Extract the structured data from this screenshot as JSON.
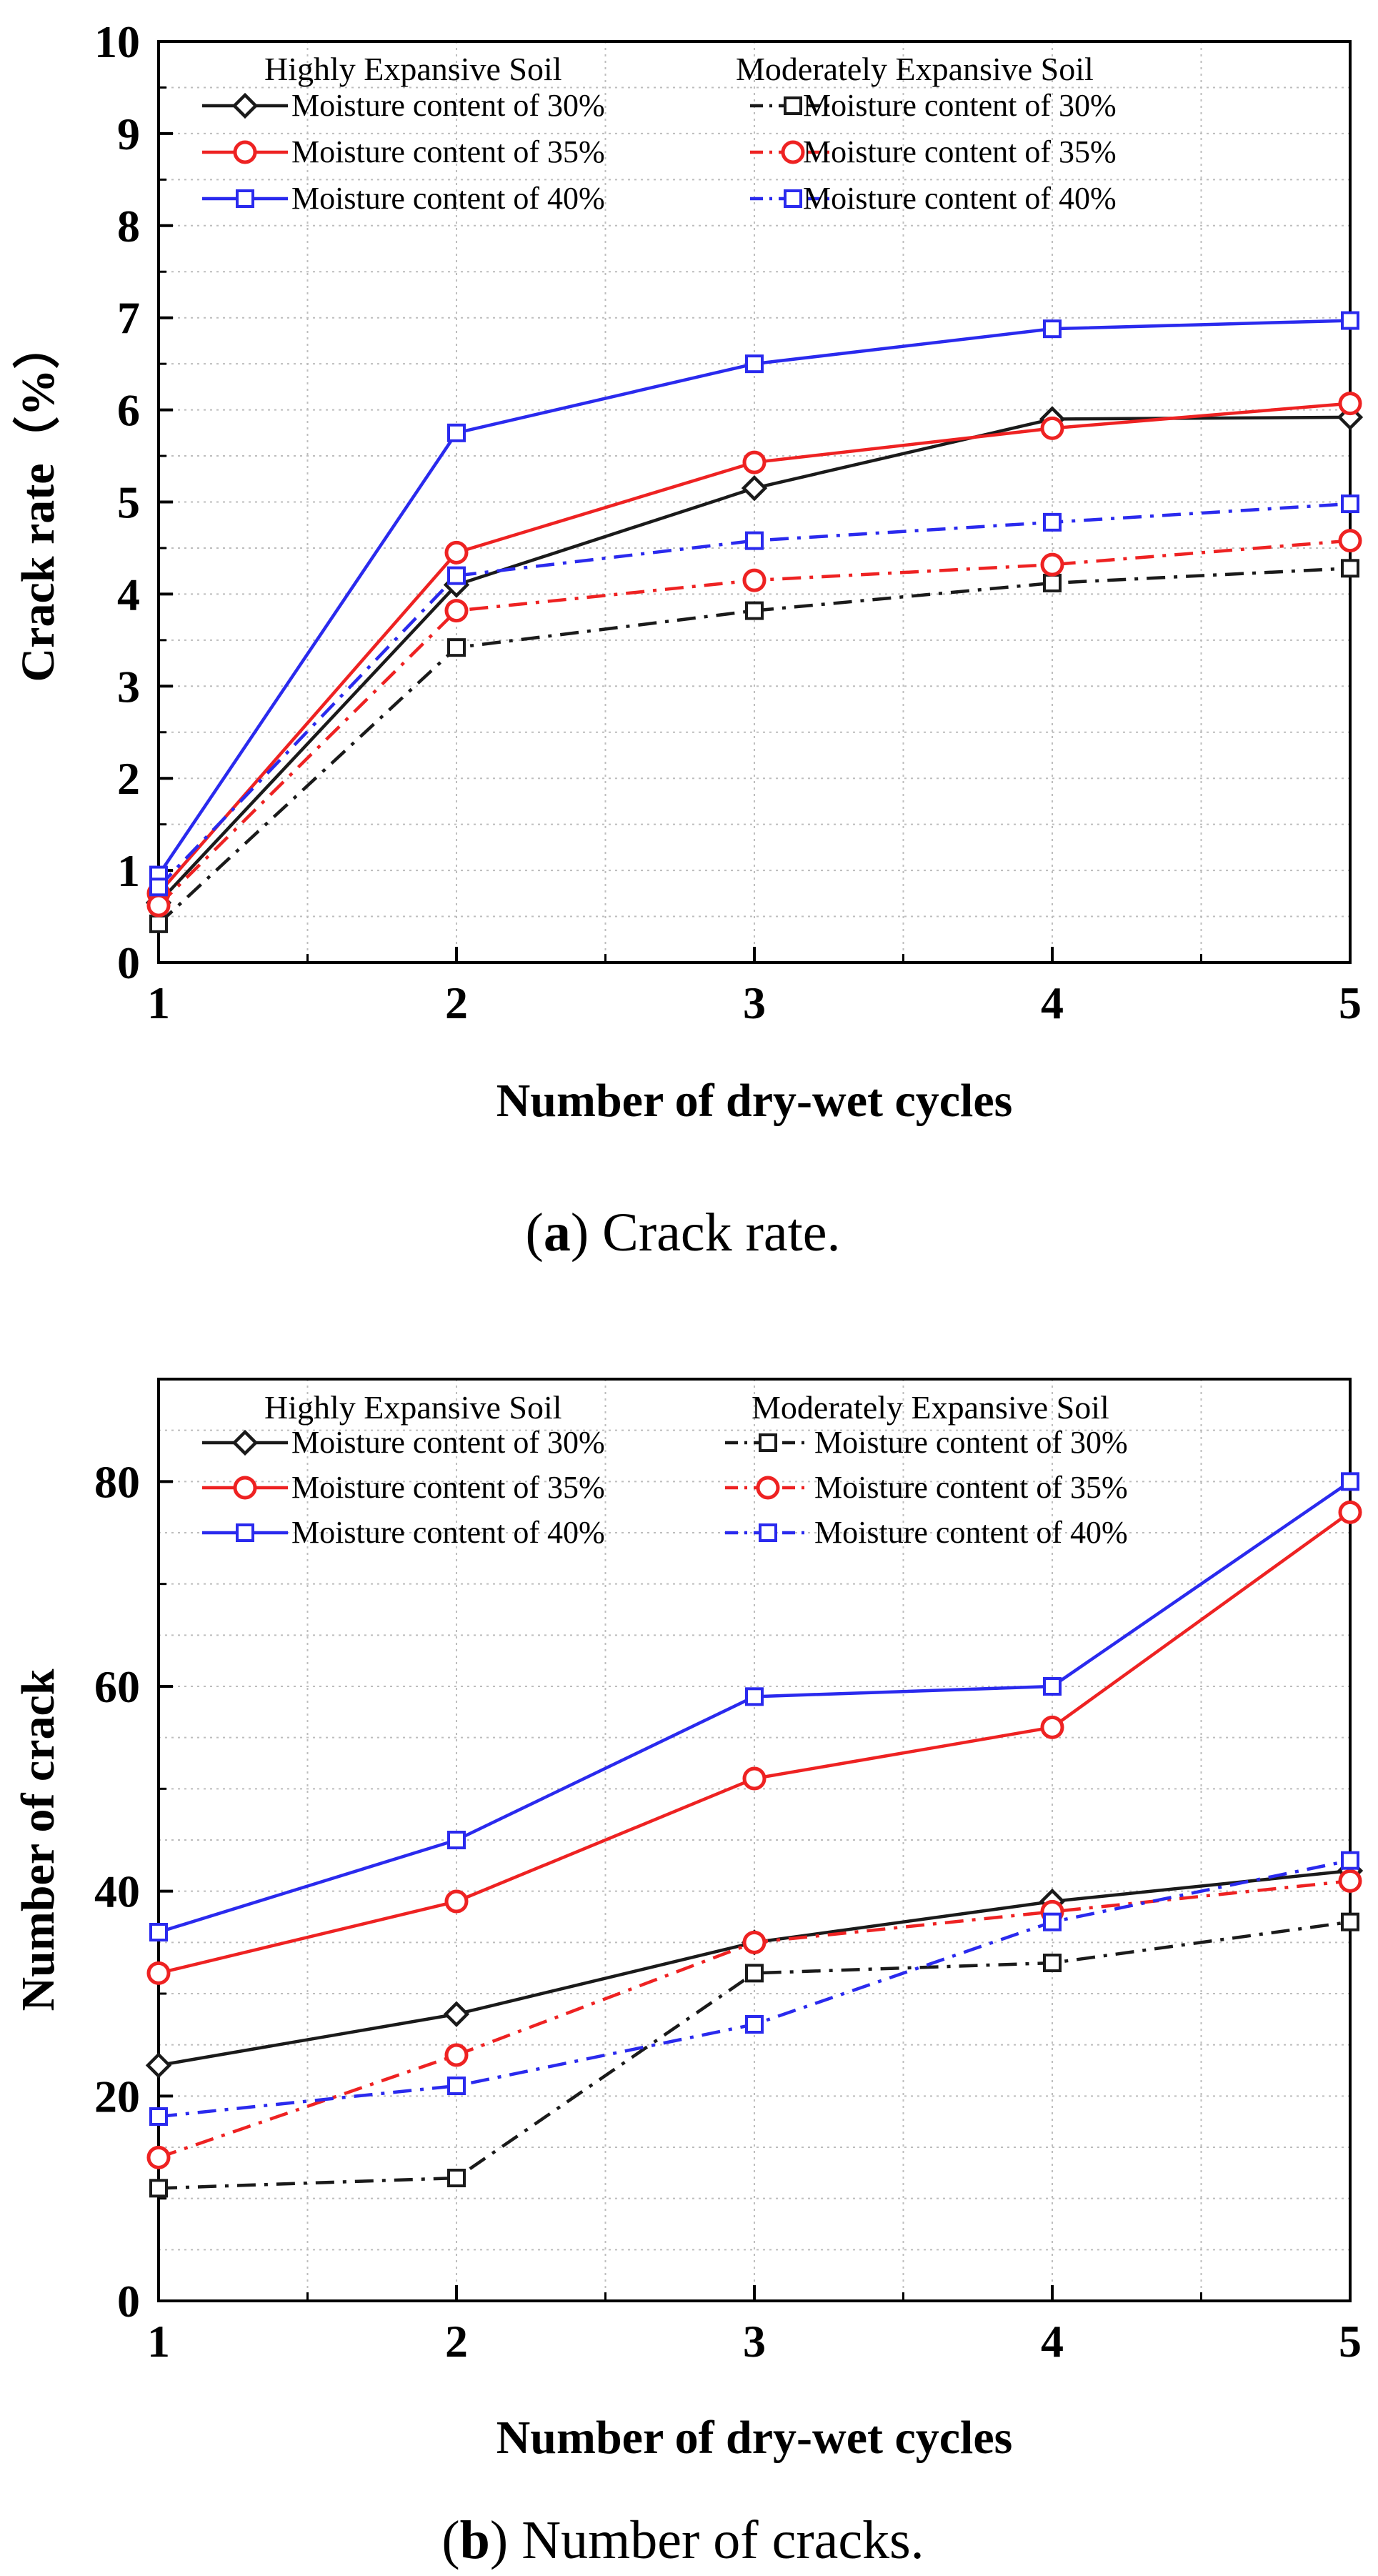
{
  "chart_data": [
    {
      "type": "line",
      "caption_open": "(",
      "caption_letter": "a",
      "caption_rest": ") Crack rate.",
      "xlabel": "Number of dry-wet cycles",
      "ylabel": "Crack rate（%）",
      "xlim": [
        1,
        5
      ],
      "ylim": [
        0,
        10
      ],
      "x_ticks": [
        "1",
        "2",
        "3",
        "4",
        "5"
      ],
      "y_ticks": [
        "0",
        "1",
        "2",
        "3",
        "4",
        "5",
        "6",
        "7",
        "8",
        "9",
        "10"
      ],
      "grid": true,
      "legend_groups": [
        "Highly Expansive Soil",
        "Moderately Expansive Soil"
      ],
      "x": [
        1,
        2,
        3,
        4,
        5
      ],
      "series": [
        {
          "name": "Moisture content of 30%",
          "group": "Highly Expansive Soil",
          "color": "#1a1a1a",
          "dash": "solid",
          "marker": "diamond",
          "values": [
            0.65,
            4.1,
            5.15,
            5.9,
            5.92
          ]
        },
        {
          "name": "Moisture content of 35%",
          "group": "Highly Expansive Soil",
          "color": "#ee2222",
          "dash": "solid",
          "marker": "circle",
          "values": [
            0.75,
            4.45,
            5.43,
            5.8,
            6.07
          ]
        },
        {
          "name": "Moisture content of 40%",
          "group": "Highly Expansive Soil",
          "color": "#2a2aee",
          "dash": "solid",
          "marker": "square",
          "values": [
            0.95,
            5.75,
            6.5,
            6.88,
            6.97
          ]
        },
        {
          "name": "Moisture content of 30%",
          "group": "Moderately Expansive Soil",
          "color": "#1a1a1a",
          "dash": "dashdot",
          "marker": "square",
          "values": [
            0.42,
            3.42,
            3.82,
            4.12,
            4.28
          ]
        },
        {
          "name": "Moisture content of 35%",
          "group": "Moderately Expansive Soil",
          "color": "#ee2222",
          "dash": "dashdot",
          "marker": "circle",
          "values": [
            0.62,
            3.82,
            4.15,
            4.32,
            4.58
          ]
        },
        {
          "name": "Moisture content of 40%",
          "group": "Moderately Expansive Soil",
          "color": "#2a2aee",
          "dash": "dashdot",
          "marker": "square",
          "values": [
            0.82,
            4.2,
            4.58,
            4.78,
            4.98
          ]
        }
      ]
    },
    {
      "type": "line",
      "caption_open": "(",
      "caption_letter": "b",
      "caption_rest": ") Number of cracks.",
      "xlabel": "Number of dry-wet cycles",
      "ylabel": "Number of crack",
      "xlim": [
        1,
        5
      ],
      "ylim": [
        0,
        90
      ],
      "x_ticks": [
        "1",
        "2",
        "3",
        "4",
        "5"
      ],
      "y_ticks": [
        "0",
        "20",
        "40",
        "60",
        "80"
      ],
      "grid": true,
      "legend_groups": [
        "Highly Expansive Soil",
        "Moderately Expansive Soil"
      ],
      "x": [
        1,
        2,
        3,
        4,
        5
      ],
      "series": [
        {
          "name": "Moisture content of 30%",
          "group": "Highly Expansive Soil",
          "color": "#1a1a1a",
          "dash": "solid",
          "marker": "diamond",
          "values": [
            23,
            28,
            35,
            39,
            42
          ]
        },
        {
          "name": "Moisture content of 35%",
          "group": "Highly Expansive Soil",
          "color": "#ee2222",
          "dash": "solid",
          "marker": "circle",
          "values": [
            32,
            39,
            51,
            56,
            77
          ]
        },
        {
          "name": "Moisture content of 40%",
          "group": "Highly Expansive Soil",
          "color": "#2a2aee",
          "dash": "solid",
          "marker": "square",
          "values": [
            36,
            45,
            59,
            60,
            80
          ]
        },
        {
          "name": "Moisture content of 30%",
          "group": "Moderately Expansive Soil",
          "color": "#1a1a1a",
          "dash": "dashdot",
          "marker": "square",
          "values": [
            11,
            12,
            32,
            33,
            37
          ]
        },
        {
          "name": "Moisture content of 35%",
          "group": "Moderately Expansive Soil",
          "color": "#ee2222",
          "dash": "dashdot",
          "marker": "circle",
          "values": [
            14,
            24,
            35,
            38,
            41
          ]
        },
        {
          "name": "Moisture content of 40%",
          "group": "Moderately Expansive Soil",
          "color": "#2a2aee",
          "dash": "dashdot",
          "marker": "square",
          "values": [
            18,
            21,
            27,
            37,
            43
          ]
        }
      ]
    }
  ]
}
